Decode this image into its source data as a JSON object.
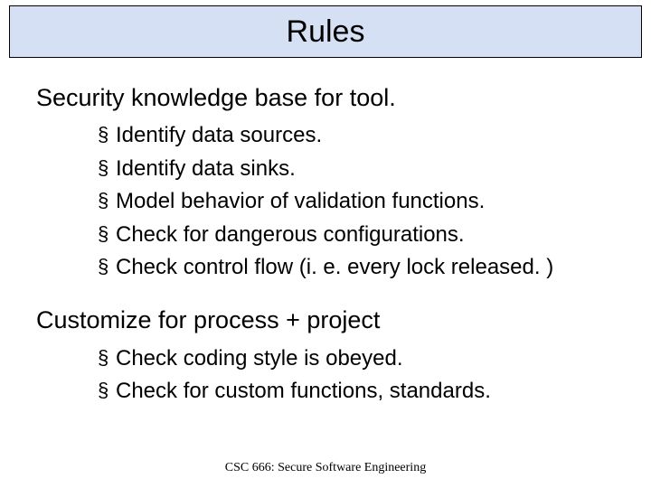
{
  "title": "Rules",
  "sections": [
    {
      "heading": "Security knowledge base for tool.",
      "bullets": [
        "Identify data sources.",
        "Identify data sinks.",
        "Model behavior of validation functions.",
        "Check for dangerous configurations.",
        "Check control flow (i. e. every lock released. )"
      ]
    },
    {
      "heading": "Customize for process + project",
      "bullets": [
        "Check coding style is obeyed.",
        "Check for custom functions, standards."
      ]
    }
  ],
  "footer": "CSC 666: Secure Software Engineering",
  "colors": {
    "title_bg": "#d6e0f5",
    "title_border": "#000000",
    "text": "#000000",
    "background": "#ffffff"
  },
  "typography": {
    "title_fontsize": 34,
    "heading_fontsize": 27,
    "bullet_fontsize": 24,
    "footer_fontsize": 14
  },
  "bullet_glyph": "§"
}
